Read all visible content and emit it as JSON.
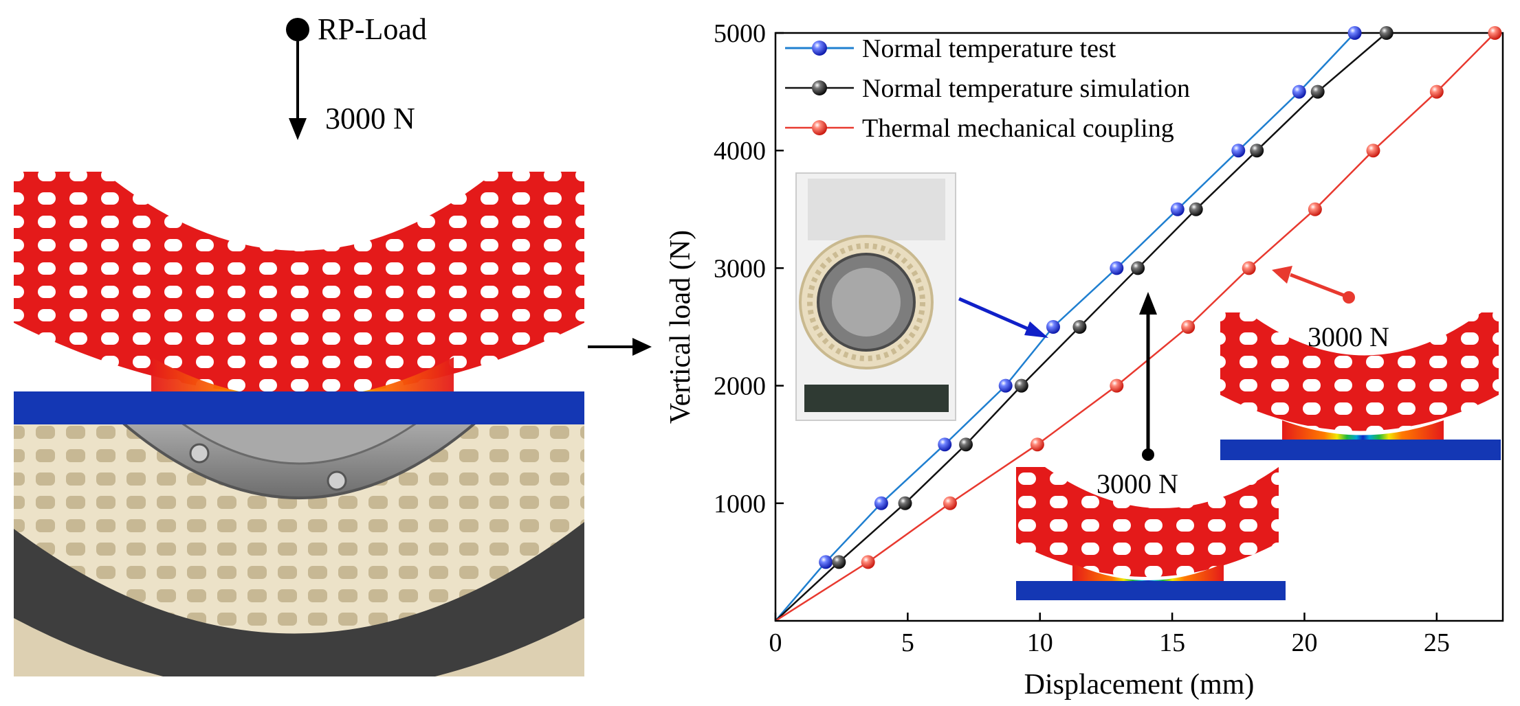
{
  "load_panel": {
    "reference_point_label": "RP-Load",
    "load_label": "3000 N"
  },
  "colors": {
    "fea_red": "#e41a1a",
    "fea_orange": "#ff7a00",
    "fea_yellow": "#f2e600",
    "fea_green": "#22b93c",
    "fea_cyan": "#00a6d6",
    "fea_blue": "#0b28c8",
    "plate_blue": "#1437b4",
    "tire_cream": "#ece2c8",
    "hub_gray": "#8c8c8c",
    "series_test": "#1f7fd0",
    "series_sim": "#111111",
    "series_thermal": "#e8392f"
  },
  "chart_data": {
    "type": "line",
    "xlabel": "Displacement (mm)",
    "ylabel": "Vertical load (N)",
    "xlim": [
      0,
      27.5
    ],
    "ylim": [
      0,
      5000
    ],
    "xticks": [
      0,
      5,
      10,
      15,
      20,
      25
    ],
    "yticks": [
      1000,
      2000,
      3000,
      4000,
      5000
    ],
    "grid": false,
    "legend_position": "top-left",
    "series": [
      {
        "name": "Normal temperature test",
        "color": "#1f7fd0",
        "marker_color": "#1a2bd6",
        "x": [
          0,
          1.9,
          4.0,
          6.4,
          8.7,
          10.5,
          12.9,
          15.2,
          17.5,
          19.8,
          21.9
        ],
        "y": [
          0,
          500,
          1000,
          1500,
          2000,
          2500,
          3000,
          3500,
          4000,
          4500,
          5000
        ]
      },
      {
        "name": "Normal temperature simulation",
        "color": "#111111",
        "marker_color": "#111111",
        "x": [
          0,
          2.4,
          4.9,
          7.2,
          9.3,
          11.5,
          13.7,
          15.9,
          18.2,
          20.5,
          23.1
        ],
        "y": [
          0,
          500,
          1000,
          1500,
          2000,
          2500,
          3000,
          3500,
          4000,
          4500,
          5000
        ]
      },
      {
        "name": "Thermal mechanical coupling",
        "color": "#e8392f",
        "marker_color": "#e8392f",
        "x": [
          0,
          3.5,
          6.6,
          9.9,
          12.9,
          15.6,
          17.9,
          20.4,
          22.6,
          25.0,
          27.2
        ],
        "y": [
          0,
          500,
          1000,
          1500,
          2000,
          2500,
          3000,
          3500,
          4000,
          4500,
          5000
        ]
      }
    ],
    "annotations": [
      {
        "text": "3000 N",
        "target": "normal-temperature-simulation-inset"
      },
      {
        "text": "3000 N",
        "target": "thermal-coupling-inset"
      }
    ]
  }
}
